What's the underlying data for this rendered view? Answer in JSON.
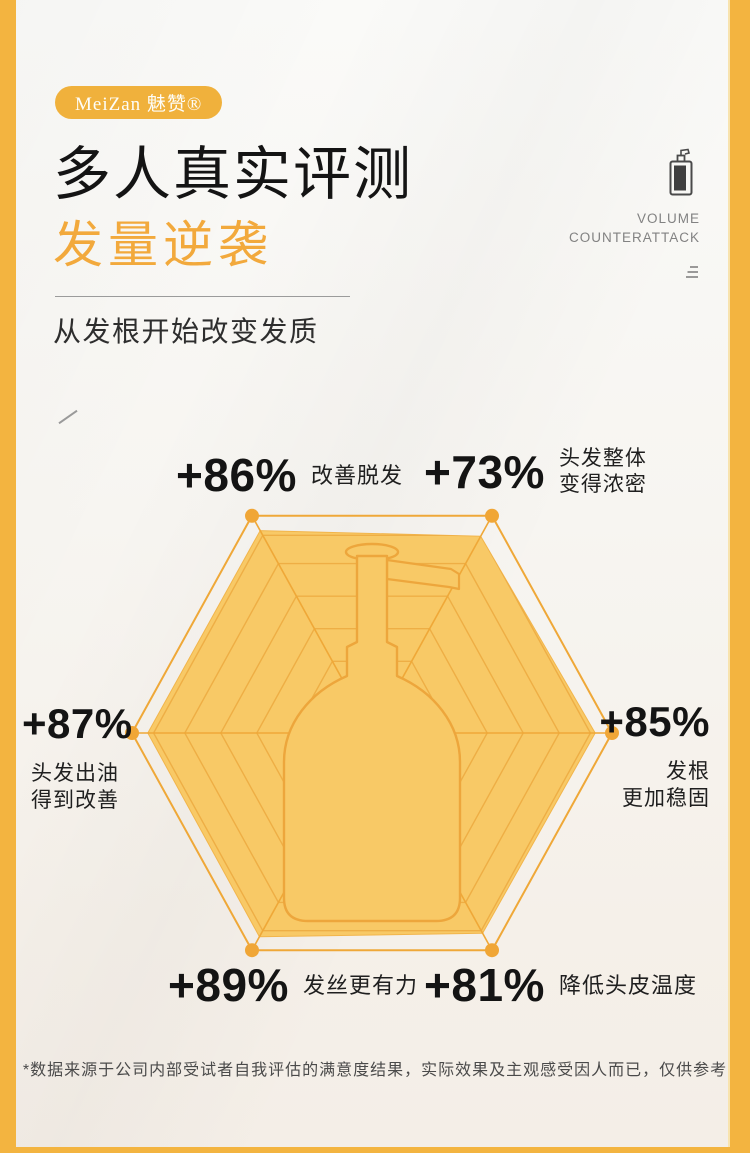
{
  "page": {
    "bg_top": "#FAFAF8",
    "bg_bottom": "#F4EEE8",
    "accent_strip_color": "#F3B440"
  },
  "brand": {
    "badge_text": "MeiZan 魅赞®",
    "badge_bg": "#F0B13C"
  },
  "header": {
    "title": "多人真实评测",
    "subtitle": "发量逆袭",
    "subtitle_color": "#F2A93C",
    "tagline": [
      "VOLUME",
      "COUNTERATTACK"
    ],
    "section_heading": "从发根开始改变发质"
  },
  "icons": {
    "corner_graphic": "pump-bottle-icon",
    "decor": "triple-lines-icon",
    "tick": "slash-mark"
  },
  "chart_data": {
    "type": "radar",
    "shape": "hexagon",
    "rings": 6,
    "value_range": [
      0,
      100
    ],
    "grid": "concentric-hexagons-with-spokes",
    "center_graphic": "pump-bottle-silhouette",
    "colors": {
      "fill": "#F8C966",
      "stroke": "#EFA838",
      "rings": "#EEAE45",
      "dots": "#F0A636",
      "outline": "#EDA63C"
    },
    "points": [
      {
        "position": "top-left",
        "display": "+86%",
        "number": 86,
        "label_lines": [
          "改善脱发"
        ]
      },
      {
        "position": "top-right",
        "display": "+73%",
        "number": 73,
        "label_lines": [
          "头发整体",
          "变得浓密"
        ]
      },
      {
        "position": "left",
        "display": "+87%",
        "number": 87,
        "label_lines": [
          "头发出油",
          "得到改善"
        ]
      },
      {
        "position": "right",
        "display": "+85%",
        "number": 85,
        "label_lines": [
          "发根",
          "更加稳固"
        ]
      },
      {
        "position": "bottom-left",
        "display": "+89%",
        "number": 89,
        "label_lines": [
          "发丝更有力"
        ]
      },
      {
        "position": "bottom-right",
        "display": "+81%",
        "number": 81,
        "label_lines": [
          "降低头皮温度"
        ]
      }
    ]
  },
  "footer": {
    "disclaimer": "*数据来源于公司内部受试者自我评估的满意度结果，实际效果及主观感受因人而已，仅供参考"
  }
}
